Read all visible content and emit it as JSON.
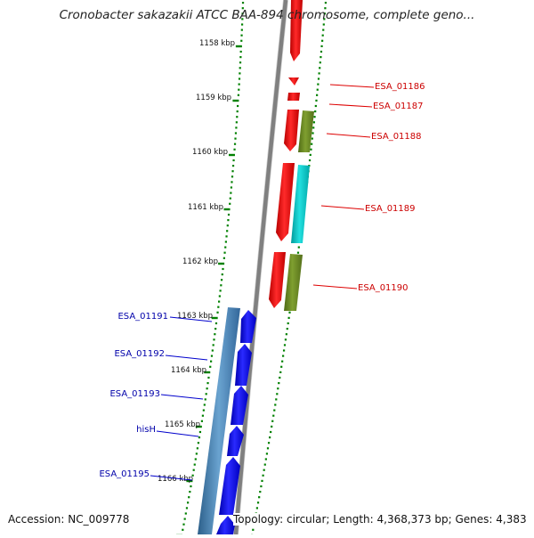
{
  "title": "Cronobacter sakazakii ATCC BAA-894 chromosome, complete geno...",
  "footer": {
    "accession": "Accession: NC_009778",
    "topology": "Topology: circular; Length: 4,368,373 bp; Genes: 4,383"
  },
  "colors": {
    "forward_gene": "#ff0000",
    "reverse_gene": "#0000ff",
    "olive_feature": "#6b8e23",
    "cyan_feature": "#00cccc",
    "steel_feature": "#4682b4",
    "backbone": "#808080",
    "tick": "#008000",
    "label_forward": "#cc0000",
    "label_reverse": "#0000aa"
  },
  "scale": {
    "unit": "kbp",
    "labels": [
      "1158 kbp",
      "1159 kbp",
      "1160 kbp",
      "1161 kbp",
      "1162 kbp",
      "1163 kbp",
      "1164 kbp",
      "1165 kbp",
      "1166 kbp"
    ]
  },
  "gene_labels": {
    "right": [
      "ESA_01186",
      "ESA_01187",
      "ESA_01188",
      "ESA_01189",
      "ESA_01190"
    ],
    "left": [
      "ESA_01191",
      "ESA_01192",
      "ESA_01193",
      "hisH",
      "ESA_01195"
    ]
  }
}
